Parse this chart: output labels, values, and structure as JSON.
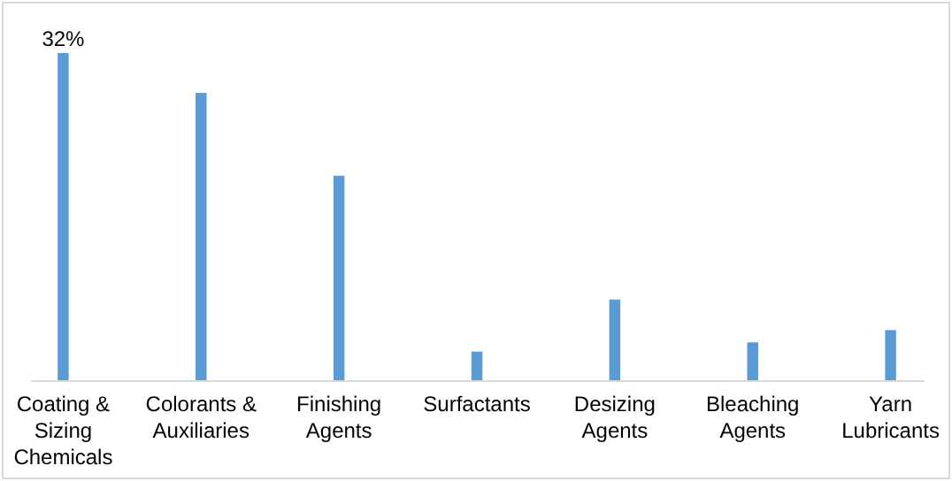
{
  "chart_data": {
    "type": "bar",
    "categories": [
      "Coating & Sizing Chemicals",
      "Colorants & Auxiliaries",
      "Finishing Agents",
      "Surfactants",
      "Desizing Agents",
      "Bleaching Agents",
      "Yarn Lubricants"
    ],
    "values": [
      32,
      28.1,
      20,
      2.8,
      7.9,
      3.7,
      4.9
    ],
    "value_labels": [
      "32%",
      null,
      null,
      null,
      null,
      null,
      null
    ],
    "color": "#5b9bd5"
  }
}
